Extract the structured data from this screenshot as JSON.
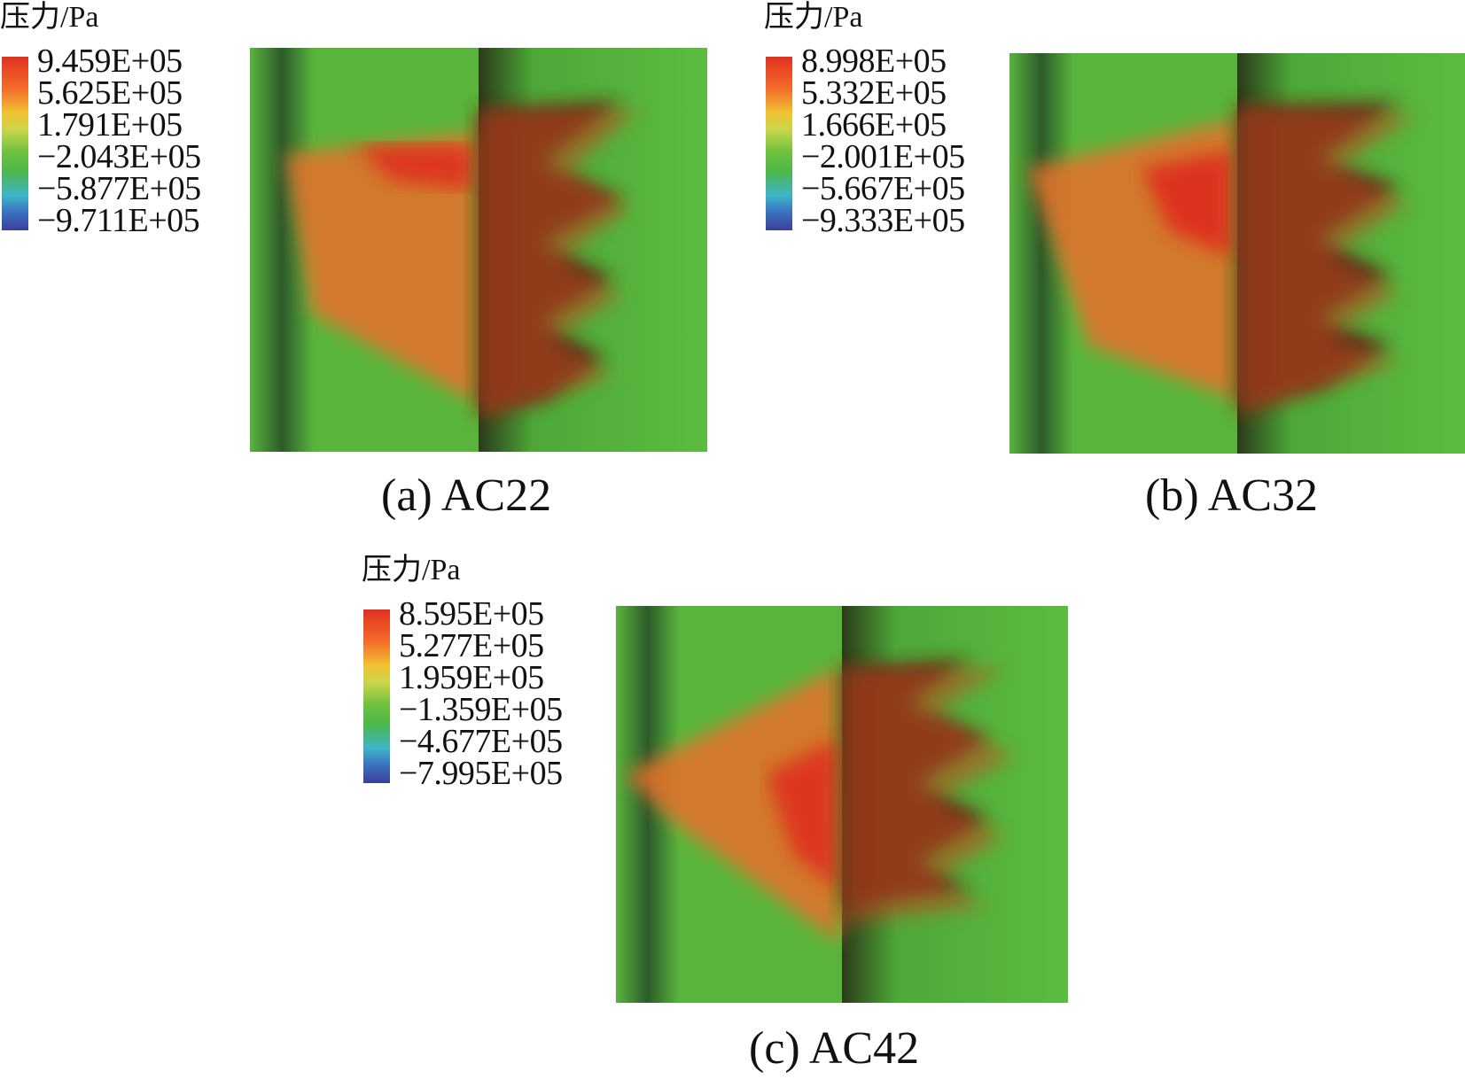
{
  "panels": [
    {
      "legend_title": "压力/Pa",
      "ticks": [
        "9.459E+05",
        "5.625E+05",
        "1.791E+05",
        "−2.043E+05",
        "−5.877E+05",
        "−9.711E+05"
      ],
      "caption": "(a) AC22"
    },
    {
      "legend_title": "压力/Pa",
      "ticks": [
        "8.998E+05",
        "5.332E+05",
        "1.666E+05",
        "−2.001E+05",
        "−5.667E+05",
        "−9.333E+05"
      ],
      "caption": "(b) AC32"
    },
    {
      "legend_title": "压力/Pa",
      "ticks": [
        "8.595E+05",
        "5.277E+05",
        "1.959E+05",
        "−1.359E+05",
        "−4.677E+05",
        "−7.995E+05"
      ],
      "caption": "(c) AC42"
    }
  ],
  "colors": {
    "field_green": "#55b83a",
    "high_red": "#e23122",
    "dark_shadow": "#3a2410"
  }
}
